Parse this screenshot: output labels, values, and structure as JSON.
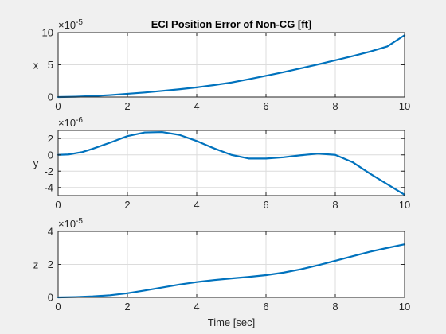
{
  "chart_data": [
    {
      "type": "line",
      "title": "ECI Position Error of Non-CG [ft]",
      "ylabel": "x",
      "xlabel": "",
      "exponent_base": "×10",
      "exponent": "-5",
      "xlim": [
        0,
        10
      ],
      "ylim": [
        0,
        10
      ],
      "xticks": [
        0,
        2,
        4,
        6,
        8,
        10
      ],
      "yticks": [
        0,
        5,
        10
      ],
      "grid": true,
      "series": [
        {
          "color": "#0072bd",
          "x": [
            0,
            0.5,
            1,
            1.5,
            2,
            2.5,
            3,
            3.5,
            4,
            4.5,
            5,
            5.5,
            6,
            6.5,
            7,
            7.5,
            8,
            8.5,
            9,
            9.5,
            10
          ],
          "y": [
            0,
            0.05,
            0.15,
            0.3,
            0.5,
            0.7,
            0.95,
            1.2,
            1.5,
            1.85,
            2.25,
            2.75,
            3.3,
            3.85,
            4.45,
            5.05,
            5.7,
            6.35,
            7.05,
            7.85,
            9.6
          ]
        }
      ]
    },
    {
      "type": "line",
      "title": "",
      "ylabel": "y",
      "xlabel": "",
      "exponent_base": "×10",
      "exponent": "-6",
      "xlim": [
        0,
        10
      ],
      "ylim": [
        -5,
        3
      ],
      "xticks": [
        0,
        2,
        4,
        6,
        8,
        10
      ],
      "yticks": [
        -4,
        -2,
        0,
        2
      ],
      "grid": true,
      "series": [
        {
          "color": "#0072bd",
          "x": [
            0,
            0.3,
            0.7,
            1,
            1.5,
            2,
            2.5,
            3,
            3.5,
            4,
            4.5,
            5,
            5.5,
            6,
            6.5,
            7,
            7.5,
            8,
            8.5,
            9,
            9.5,
            10
          ],
          "y": [
            0,
            0.05,
            0.35,
            0.75,
            1.5,
            2.3,
            2.75,
            2.8,
            2.45,
            1.7,
            0.8,
            0,
            -0.45,
            -0.45,
            -0.3,
            -0.05,
            0.15,
            0,
            -0.9,
            -2.3,
            -3.6,
            -4.9
          ]
        }
      ]
    },
    {
      "type": "line",
      "title": "",
      "ylabel": "z",
      "xlabel": "Time [sec]",
      "exponent_base": "×10",
      "exponent": "-5",
      "xlim": [
        0,
        10
      ],
      "ylim": [
        0,
        4
      ],
      "xticks": [
        0,
        2,
        4,
        6,
        8,
        10
      ],
      "yticks": [
        0,
        2,
        4
      ],
      "grid": true,
      "series": [
        {
          "color": "#0072bd",
          "x": [
            0,
            0.5,
            1,
            1.5,
            2,
            2.5,
            3,
            3.5,
            4,
            4.5,
            5,
            5.5,
            6,
            6.5,
            7,
            7.5,
            8,
            8.5,
            9,
            9.5,
            10
          ],
          "y": [
            0,
            0.02,
            0.06,
            0.13,
            0.25,
            0.42,
            0.6,
            0.78,
            0.93,
            1.05,
            1.15,
            1.24,
            1.35,
            1.5,
            1.7,
            1.95,
            2.22,
            2.5,
            2.77,
            3.0,
            3.22
          ]
        }
      ]
    }
  ]
}
